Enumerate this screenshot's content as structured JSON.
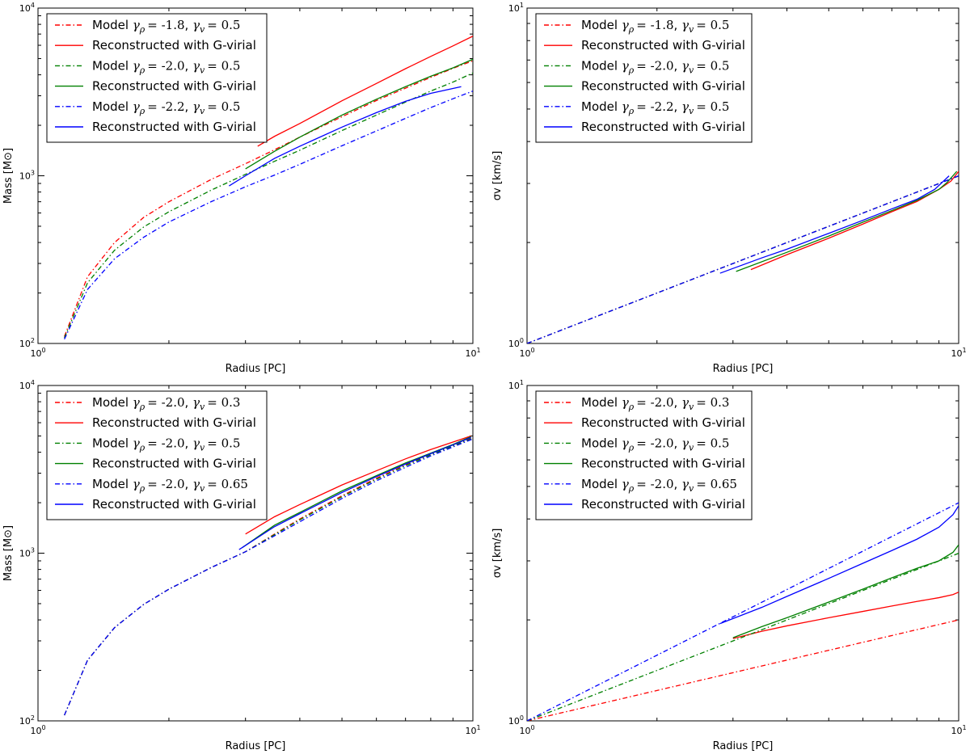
{
  "figure": {
    "title": ""
  },
  "chart_data": [
    {
      "type": "line",
      "id": "p1",
      "xlabel": "Radius [PC]",
      "ylabel": "Mass [M⊙]",
      "xscale": "log",
      "yscale": "log",
      "xlim": [
        1,
        10
      ],
      "ylim": [
        100,
        10000
      ],
      "x_ticks": [
        {
          "v": 1,
          "base": "10",
          "exp": "0"
        },
        {
          "v": 10,
          "base": "10",
          "exp": "1"
        }
      ],
      "y_ticks": [
        {
          "v": 100,
          "base": "10",
          "exp": "2"
        },
        {
          "v": 1000,
          "base": "10",
          "exp": "3"
        },
        {
          "v": 10000,
          "base": "10",
          "exp": "4"
        }
      ],
      "legend_position": "top-left",
      "series": [
        {
          "name": "Model γρ = -1.8, γv = 0.5",
          "legend": {
            "prefix": "Model ",
            "g1": "γ",
            "s1": "ρ",
            "v1": "= -1.8",
            "g2": "γ",
            "s2": "v",
            "v2": "= 0.5"
          },
          "color": "#ff0000",
          "style": "dashdot",
          "x": [
            1.15,
            1.3,
            1.5,
            1.75,
            2.0,
            2.5,
            3.0,
            3.5,
            4.0,
            5.0,
            6.0,
            7.0,
            8.0,
            9.0,
            10.0
          ],
          "y": [
            110,
            250,
            400,
            565,
            700,
            950,
            1180,
            1430,
            1700,
            2250,
            2810,
            3330,
            3860,
            4370,
            4850
          ]
        },
        {
          "name": "Reconstructed with G-virial",
          "legend": {
            "text": "Reconstructed with G-virial"
          },
          "color": "#ff0000",
          "style": "solid",
          "x": [
            3.2,
            3.5,
            4.0,
            5.0,
            6.0,
            7.0,
            8.0,
            9.0,
            10.0
          ],
          "y": [
            1500,
            1720,
            2050,
            2800,
            3550,
            4350,
            5150,
            5950,
            6800
          ]
        },
        {
          "name": "Model γρ = -2.0, γv = 0.5",
          "legend": {
            "prefix": "Model ",
            "g1": "γ",
            "s1": "ρ",
            "v1": "= -2.0",
            "g2": "γ",
            "s2": "v",
            "v2": "= 0.5"
          },
          "color": "#008000",
          "style": "dashdot",
          "x": [
            1.15,
            1.3,
            1.5,
            1.75,
            2.0,
            2.5,
            3.0,
            3.5,
            4.0,
            5.0,
            6.0,
            7.0,
            8.0,
            9.0,
            10.0
          ],
          "y": [
            108,
            230,
            360,
            495,
            610,
            820,
            1020,
            1220,
            1420,
            1860,
            2300,
            2750,
            3200,
            3620,
            4100
          ]
        },
        {
          "name": "Reconstructed with G-virial",
          "legend": {
            "text": "Reconstructed with G-virial"
          },
          "color": "#008000",
          "style": "solid",
          "x": [
            3.0,
            3.5,
            4.0,
            5.0,
            6.0,
            7.0,
            8.0,
            9.0,
            10.0
          ],
          "y": [
            1100,
            1400,
            1700,
            2300,
            2860,
            3400,
            3920,
            4400,
            4950
          ]
        },
        {
          "name": "Model γρ = -2.2, γv = 0.5",
          "legend": {
            "prefix": "Model ",
            "g1": "γ",
            "s1": "ρ",
            "v1": "= -2.2",
            "g2": "γ",
            "s2": "v",
            "v2": "= 0.5"
          },
          "color": "#0000ff",
          "style": "dashdot",
          "x": [
            1.15,
            1.3,
            1.5,
            1.75,
            2.0,
            2.5,
            3.0,
            3.5,
            4.0,
            5.0,
            6.0,
            7.0,
            8.0,
            9.0,
            10.0
          ],
          "y": [
            106,
            210,
            320,
            430,
            530,
            700,
            860,
            1010,
            1170,
            1510,
            1850,
            2200,
            2550,
            2880,
            3200
          ]
        },
        {
          "name": "Reconstructed with G-virial",
          "legend": {
            "text": "Reconstructed with G-virial"
          },
          "color": "#0000ff",
          "style": "solid",
          "x": [
            2.75,
            3.0,
            3.5,
            4.0,
            5.0,
            6.0,
            7.0,
            8.0,
            9.4
          ],
          "y": [
            870,
            1000,
            1270,
            1500,
            1950,
            2380,
            2780,
            3100,
            3400
          ]
        }
      ]
    },
    {
      "type": "line",
      "id": "p2",
      "xlabel": "Radius [PC]",
      "ylabel": "σv [km/s]",
      "xscale": "log",
      "yscale": "log",
      "xlim": [
        1,
        10
      ],
      "ylim": [
        1,
        10
      ],
      "x_ticks": [
        {
          "v": 1,
          "base": "10",
          "exp": "0"
        },
        {
          "v": 10,
          "base": "10",
          "exp": "1"
        }
      ],
      "y_ticks": [
        {
          "v": 1,
          "base": "10",
          "exp": "0"
        },
        {
          "v": 10,
          "base": "10",
          "exp": "1"
        }
      ],
      "legend_position": "top-left",
      "series": [
        {
          "name": "Model γρ = -1.8, γv = 0.5",
          "legend": {
            "prefix": "Model ",
            "g1": "γ",
            "s1": "ρ",
            "v1": "= -1.8",
            "g2": "γ",
            "s2": "v",
            "v2": "= 0.5"
          },
          "color": "#ff0000",
          "style": "dashdot",
          "x": [
            1.0,
            10.0
          ],
          "y": [
            1.0,
            3.16
          ]
        },
        {
          "name": "Reconstructed with G-virial",
          "legend": {
            "text": "Reconstructed with G-virial"
          },
          "color": "#ff0000",
          "style": "solid",
          "x": [
            3.3,
            4.0,
            5.0,
            6.0,
            7.0,
            8.0,
            9.0,
            9.6,
            10.0
          ],
          "y": [
            1.66,
            1.84,
            2.06,
            2.27,
            2.47,
            2.65,
            2.88,
            3.05,
            3.26
          ]
        },
        {
          "name": "Model γρ = -2.0, γv = 0.5",
          "legend": {
            "prefix": "Model ",
            "g1": "γ",
            "s1": "ρ",
            "v1": "= -2.0",
            "g2": "γ",
            "s2": "v",
            "v2": "= 0.5"
          },
          "color": "#008000",
          "style": "dashdot",
          "x": [
            1.0,
            10.0
          ],
          "y": [
            1.0,
            3.16
          ]
        },
        {
          "name": "Reconstructed with G-virial",
          "legend": {
            "text": "Reconstructed with G-virial"
          },
          "color": "#008000",
          "style": "solid",
          "x": [
            3.05,
            4.0,
            5.0,
            6.0,
            7.0,
            8.0,
            9.0,
            9.4,
            9.9
          ],
          "y": [
            1.64,
            1.87,
            2.09,
            2.3,
            2.49,
            2.67,
            2.88,
            3.02,
            3.26
          ]
        },
        {
          "name": "Model γρ = -2.2, γv = 0.5",
          "legend": {
            "prefix": "Model ",
            "g1": "γ",
            "s1": "ρ",
            "v1": "= -2.2",
            "g2": "γ",
            "s2": "v",
            "v2": "= 0.5"
          },
          "color": "#0000ff",
          "style": "dashdot",
          "x": [
            1.0,
            10.0
          ],
          "y": [
            1.0,
            3.16
          ]
        },
        {
          "name": "Reconstructed with G-virial",
          "legend": {
            "text": "Reconstructed with G-virial"
          },
          "color": "#0000ff",
          "style": "solid",
          "x": [
            2.8,
            3.5,
            4.0,
            5.0,
            6.0,
            7.0,
            8.0,
            8.8,
            9.5
          ],
          "y": [
            1.62,
            1.8,
            1.91,
            2.13,
            2.33,
            2.52,
            2.69,
            2.88,
            3.16
          ]
        }
      ]
    },
    {
      "type": "line",
      "id": "p3",
      "xlabel": "Radius [PC]",
      "ylabel": "Mass [M⊙]",
      "xscale": "log",
      "yscale": "log",
      "xlim": [
        1,
        10
      ],
      "ylim": [
        100,
        10000
      ],
      "x_ticks": [
        {
          "v": 1,
          "base": "10",
          "exp": "0"
        },
        {
          "v": 10,
          "base": "10",
          "exp": "1"
        }
      ],
      "y_ticks": [
        {
          "v": 100,
          "base": "10",
          "exp": "2"
        },
        {
          "v": 1000,
          "base": "10",
          "exp": "3"
        },
        {
          "v": 10000,
          "base": "10",
          "exp": "4"
        }
      ],
      "legend_position": "top-left",
      "series": [
        {
          "name": "Model γρ = -2.0, γv = 0.3",
          "legend": {
            "prefix": "Model ",
            "g1": "γ",
            "s1": "ρ",
            "v1": "= -2.0",
            "g2": "γ",
            "s2": "v",
            "v2": "= 0.3"
          },
          "color": "#ff0000",
          "style": "dashdot",
          "x": [
            1.15,
            1.3,
            1.5,
            1.75,
            2.0,
            2.5,
            3.0,
            3.5,
            4.0,
            5.0,
            6.0,
            7.0,
            8.0,
            9.0,
            10.0
          ],
          "y": [
            108,
            230,
            360,
            495,
            610,
            820,
            1020,
            1300,
            1600,
            2200,
            2800,
            3350,
            3900,
            4400,
            4900
          ]
        },
        {
          "name": "Reconstructed with G-virial",
          "legend": {
            "text": "Reconstructed with G-virial"
          },
          "color": "#ff0000",
          "style": "solid",
          "x": [
            3.0,
            3.5,
            4.0,
            5.0,
            6.0,
            7.0,
            8.0,
            9.0,
            9.9
          ],
          "y": [
            1300,
            1650,
            1950,
            2550,
            3100,
            3650,
            4150,
            4600,
            5000
          ]
        },
        {
          "name": "Model γρ = -2.0, γv = 0.5",
          "legend": {
            "prefix": "Model ",
            "g1": "γ",
            "s1": "ρ",
            "v1": "= -2.0",
            "g2": "γ",
            "s2": "v",
            "v2": "= 0.5"
          },
          "color": "#008000",
          "style": "dashdot",
          "x": [
            1.15,
            1.3,
            1.5,
            1.75,
            2.0,
            2.5,
            3.0,
            3.5,
            4.0,
            5.0,
            6.0,
            7.0,
            8.0,
            9.0,
            10.0
          ],
          "y": [
            108,
            230,
            360,
            495,
            610,
            820,
            1020,
            1290,
            1580,
            2170,
            2760,
            3320,
            3860,
            4360,
            4850
          ]
        },
        {
          "name": "Reconstructed with G-virial",
          "legend": {
            "text": "Reconstructed with G-virial"
          },
          "color": "#008000",
          "style": "solid",
          "x": [
            2.95,
            3.5,
            4.0,
            5.0,
            6.0,
            7.0,
            8.0,
            9.0,
            9.9
          ],
          "y": [
            1080,
            1470,
            1750,
            2350,
            2900,
            3450,
            3950,
            4450,
            4950
          ]
        },
        {
          "name": "Model γρ = -2.0, γv = 0.65",
          "legend": {
            "prefix": "Model ",
            "g1": "γ",
            "s1": "ρ",
            "v1": "= -2.0",
            "g2": "γ",
            "s2": "v",
            "v2": "= 0.65"
          },
          "color": "#0000ff",
          "style": "dashdot",
          "x": [
            1.15,
            1.3,
            1.5,
            1.75,
            2.0,
            2.5,
            3.0,
            3.5,
            4.0,
            5.0,
            6.0,
            7.0,
            8.0,
            9.0,
            10.0
          ],
          "y": [
            108,
            230,
            360,
            495,
            610,
            820,
            1020,
            1270,
            1540,
            2120,
            2700,
            3250,
            3800,
            4300,
            4800
          ]
        },
        {
          "name": "Reconstructed with G-virial",
          "legend": {
            "text": "Reconstructed with G-virial"
          },
          "color": "#0000ff",
          "style": "solid",
          "x": [
            2.9,
            3.5,
            4.0,
            5.0,
            6.0,
            7.0,
            8.0,
            9.0,
            9.9
          ],
          "y": [
            1050,
            1440,
            1720,
            2300,
            2860,
            3400,
            3920,
            4420,
            4900
          ]
        }
      ]
    },
    {
      "type": "line",
      "id": "p4",
      "xlabel": "Radius [PC]",
      "ylabel": "σv [km/s]",
      "xscale": "log",
      "yscale": "log",
      "xlim": [
        1,
        10
      ],
      "ylim": [
        1,
        10
      ],
      "x_ticks": [
        {
          "v": 1,
          "base": "10",
          "exp": "0"
        },
        {
          "v": 10,
          "base": "10",
          "exp": "1"
        }
      ],
      "y_ticks": [
        {
          "v": 1,
          "base": "10",
          "exp": "0"
        },
        {
          "v": 10,
          "base": "10",
          "exp": "1"
        }
      ],
      "legend_position": "top-left",
      "series": [
        {
          "name": "Model γρ = -2.0, γv = 0.3",
          "legend": {
            "prefix": "Model ",
            "g1": "γ",
            "s1": "ρ",
            "v1": "= -2.0",
            "g2": "γ",
            "s2": "v",
            "v2": "= 0.3"
          },
          "color": "#ff0000",
          "style": "dashdot",
          "x": [
            1.0,
            10.0
          ],
          "y": [
            1.0,
            2.0
          ]
        },
        {
          "name": "Reconstructed with G-virial",
          "legend": {
            "text": "Reconstructed with G-virial"
          },
          "color": "#ff0000",
          "style": "solid",
          "x": [
            3.0,
            3.5,
            4.0,
            5.0,
            6.0,
            7.0,
            8.0,
            9.0,
            9.7,
            10.0
          ],
          "y": [
            1.76,
            1.85,
            1.92,
            2.03,
            2.12,
            2.2,
            2.27,
            2.33,
            2.38,
            2.42
          ]
        },
        {
          "name": "Model γρ = -2.0, γv = 0.5",
          "legend": {
            "prefix": "Model ",
            "g1": "γ",
            "s1": "ρ",
            "v1": "= -2.0",
            "g2": "γ",
            "s2": "v",
            "v2": "= 0.5"
          },
          "color": "#008000",
          "style": "dashdot",
          "x": [
            1.0,
            10.0
          ],
          "y": [
            1.0,
            3.16
          ]
        },
        {
          "name": "Reconstructed with G-virial",
          "legend": {
            "text": "Reconstructed with G-virial"
          },
          "color": "#008000",
          "style": "solid",
          "x": [
            3.0,
            3.5,
            4.0,
            5.0,
            6.0,
            7.0,
            8.0,
            9.0,
            9.7,
            10.0
          ],
          "y": [
            1.77,
            1.91,
            2.03,
            2.26,
            2.47,
            2.67,
            2.85,
            3.0,
            3.18,
            3.35
          ]
        },
        {
          "name": "Model γρ = -2.0, γv = 0.65",
          "legend": {
            "prefix": "Model ",
            "g1": "γ",
            "s1": "ρ",
            "v1": "= -2.0",
            "g2": "γ",
            "s2": "v",
            "v2": "= 0.65"
          },
          "color": "#0000ff",
          "style": "dashdot",
          "x": [
            1.0,
            10.0
          ],
          "y": [
            1.0,
            4.47
          ]
        },
        {
          "name": "Reconstructed with G-virial",
          "legend": {
            "text": "Reconstructed with G-virial"
          },
          "color": "#0000ff",
          "style": "solid",
          "x": [
            2.8,
            3.5,
            4.0,
            5.0,
            6.0,
            7.0,
            8.0,
            9.0,
            9.7,
            10.0
          ],
          "y": [
            1.95,
            2.18,
            2.35,
            2.66,
            2.95,
            3.22,
            3.48,
            3.78,
            4.12,
            4.38
          ]
        }
      ]
    }
  ]
}
